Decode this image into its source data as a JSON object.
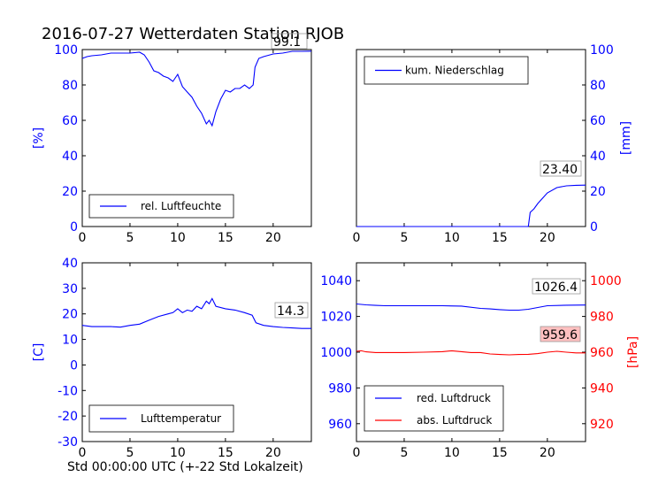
{
  "page": {
    "title": "2016-07-27 Wetterdaten Station RJOB",
    "footer_xlabel": "Std 00:00:00 UTC (+-22 Std Lokalzeit)"
  },
  "chart_data": [
    {
      "type": "line",
      "panel": "top-left",
      "ylabel": "[%]",
      "xlim": [
        0,
        24
      ],
      "ylim": [
        0,
        100
      ],
      "xticks": [
        0,
        5,
        10,
        15,
        20
      ],
      "yticks": [
        0,
        20,
        40,
        60,
        80,
        100
      ],
      "series": [
        {
          "name": "rel. Luftfeuchte",
          "color": "#0000ff",
          "x": [
            0,
            0.5,
            1,
            2,
            3,
            4,
            5,
            6,
            6.5,
            7,
            7.5,
            8,
            8.5,
            9,
            9.5,
            10,
            10.5,
            11,
            11.5,
            12,
            12.5,
            13,
            13.3,
            13.6,
            14,
            14.5,
            15,
            15.5,
            16,
            16.5,
            17,
            17.5,
            17.9,
            18.1,
            18.5,
            19,
            20,
            21,
            22,
            23,
            24
          ],
          "y": [
            95,
            96,
            96.5,
            97,
            98,
            98,
            98,
            98.5,
            97,
            93,
            88,
            87,
            85,
            84,
            82,
            86,
            79,
            76,
            73,
            68,
            64,
            58,
            60,
            57,
            65,
            72,
            77,
            76,
            78,
            78,
            80,
            78,
            80,
            90,
            95,
            96,
            97.5,
            98,
            99,
            99,
            99.1
          ]
        }
      ],
      "annotation": "99.1",
      "legend": "bottom-left",
      "legend_entries": [
        "rel. Luftfeuchte"
      ]
    },
    {
      "type": "line",
      "panel": "top-right",
      "ylabel": "[mm]",
      "y_axis_side": "right",
      "xlim": [
        0,
        24
      ],
      "ylim": [
        0,
        100
      ],
      "xticks": [
        0,
        5,
        10,
        15,
        20
      ],
      "yticks": [
        0,
        20,
        40,
        60,
        80,
        100
      ],
      "series": [
        {
          "name": "kum. Niederschlag",
          "color": "#0000ff",
          "x": [
            0,
            18,
            18.2,
            18.6,
            19,
            19.5,
            20,
            21,
            22,
            23,
            24
          ],
          "y": [
            0,
            0,
            8,
            10,
            13,
            16,
            19,
            22,
            23,
            23.3,
            23.4
          ]
        }
      ],
      "annotation": "23.40",
      "legend": "top-left",
      "legend_entries": [
        "kum. Niederschlag"
      ]
    },
    {
      "type": "line",
      "panel": "bottom-left",
      "ylabel": "[C]",
      "xlim": [
        0,
        24
      ],
      "ylim": [
        -30,
        40
      ],
      "xticks": [
        0,
        5,
        10,
        15,
        20
      ],
      "yticks": [
        -30,
        -20,
        -10,
        0,
        10,
        20,
        30,
        40
      ],
      "series": [
        {
          "name": "Lufttemperatur",
          "color": "#0000ff",
          "x": [
            0,
            1,
            2,
            3,
            4,
            5,
            6,
            7,
            8,
            9,
            9.5,
            10,
            10.5,
            11,
            11.5,
            12,
            12.5,
            13,
            13.3,
            13.6,
            14,
            15,
            16,
            17,
            17.8,
            18.2,
            19,
            20,
            21,
            22,
            23,
            24
          ],
          "y": [
            15.5,
            15,
            15,
            15,
            14.8,
            15.5,
            16,
            17.5,
            19,
            20,
            20.5,
            22,
            20.5,
            21.5,
            21,
            23,
            22,
            25,
            24,
            26,
            23,
            22,
            21.5,
            20.5,
            19.5,
            16.5,
            15.5,
            15,
            14.7,
            14.5,
            14.3,
            14.3
          ]
        }
      ],
      "annotation": "14.3",
      "legend": "bottom-left",
      "legend_entries": [
        "Lufttemperatur"
      ]
    },
    {
      "type": "line",
      "panel": "bottom-right",
      "ylabel": "[hPa]",
      "xlim": [
        0,
        24
      ],
      "ylim_left": [
        950,
        1050
      ],
      "yticks_left": [
        960,
        980,
        1000,
        1020,
        1040
      ],
      "ylim_right": [
        910,
        1010
      ],
      "yticks_right": [
        920,
        940,
        960,
        980,
        1000
      ],
      "xticks": [
        0,
        5,
        10,
        15,
        20
      ],
      "series": [
        {
          "name": "red. Luftdruck",
          "color": "#0000ff",
          "axis": "left",
          "x": [
            0,
            1,
            2,
            3,
            5,
            7,
            9,
            11,
            13,
            14,
            15,
            16,
            17,
            18,
            19,
            20,
            22,
            24
          ],
          "y": [
            1027,
            1026.5,
            1026.2,
            1026,
            1026,
            1026,
            1026,
            1025.8,
            1024.5,
            1024.2,
            1023.8,
            1023.5,
            1023.5,
            1024,
            1025,
            1026,
            1026.3,
            1026.4
          ]
        },
        {
          "name": "abs. Luftdruck",
          "color": "#ff0000",
          "axis": "right",
          "x": [
            0,
            0.5,
            1,
            2,
            3,
            5,
            7,
            9,
            10,
            11,
            12,
            13,
            14,
            15,
            16,
            17,
            18,
            19,
            20,
            21,
            22,
            23,
            24
          ],
          "y": [
            960.5,
            960.8,
            960.2,
            959.8,
            959.8,
            959.8,
            960,
            960.3,
            960.8,
            960.3,
            959.8,
            959.8,
            959,
            958.7,
            958.5,
            958.7,
            958.8,
            959.2,
            960,
            960.5,
            960,
            959.6,
            959.6
          ]
        }
      ],
      "annotations": [
        "1026.4",
        "959.6"
      ],
      "legend": "bottom-left",
      "legend_entries": [
        "red. Luftdruck",
        "abs. Luftdruck"
      ]
    }
  ]
}
